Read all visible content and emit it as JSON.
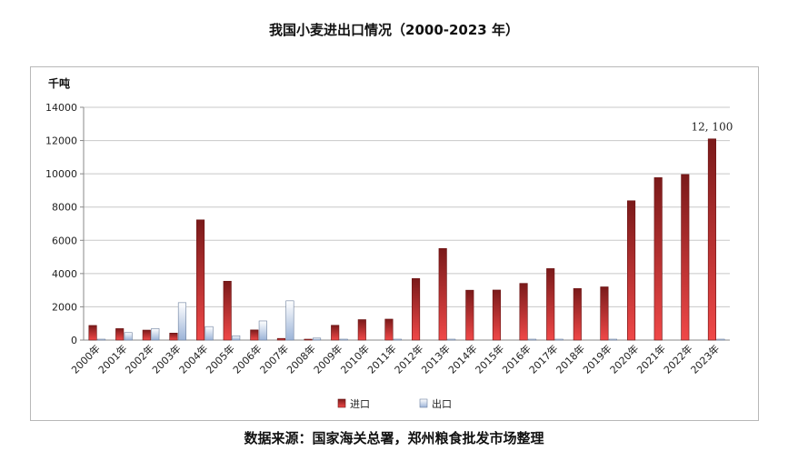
{
  "title": "我国小麦进出口情况（2000-2023 年）",
  "source": "数据来源：国家海关总署，郑州粮食批发市场整理",
  "chart_data": {
    "type": "bar",
    "ylabel": "千吨",
    "ylim": [
      0,
      14000
    ],
    "yticks": [
      0,
      2000,
      4000,
      6000,
      8000,
      10000,
      12000,
      14000
    ],
    "grid": true,
    "legend_position": "bottom",
    "categories": [
      "2000年",
      "2001年",
      "2002年",
      "2003年",
      "2004年",
      "2005年",
      "2006年",
      "2007年",
      "2008年",
      "2009年",
      "2010年",
      "2011年",
      "2012年",
      "2013年",
      "2014年",
      "2015年",
      "2016年",
      "2017年",
      "2018年",
      "2019年",
      "2020年",
      "2021年",
      "2022年",
      "2023年"
    ],
    "series": [
      {
        "name": "进口",
        "color_top": "#7a1a1a",
        "color_bottom": "#f04848",
        "values": [
          880,
          690,
          600,
          420,
          7230,
          3540,
          610,
          100,
          40,
          890,
          1230,
          1260,
          3700,
          5510,
          3000,
          3010,
          3410,
          4300,
          3100,
          3200,
          8380,
          9770,
          9960,
          12100
        ]
      },
      {
        "name": "出口",
        "color_top": "#ffffff",
        "color_bottom": "#9cb4d8",
        "values": [
          20,
          450,
          690,
          2250,
          810,
          260,
          1150,
          2360,
          120,
          20,
          0,
          40,
          0,
          10,
          0,
          0,
          10,
          10,
          0,
          10,
          0,
          0,
          0,
          50
        ]
      }
    ],
    "annotations": [
      {
        "category": "2023年",
        "series": "进口",
        "text": "12, 100"
      }
    ]
  }
}
